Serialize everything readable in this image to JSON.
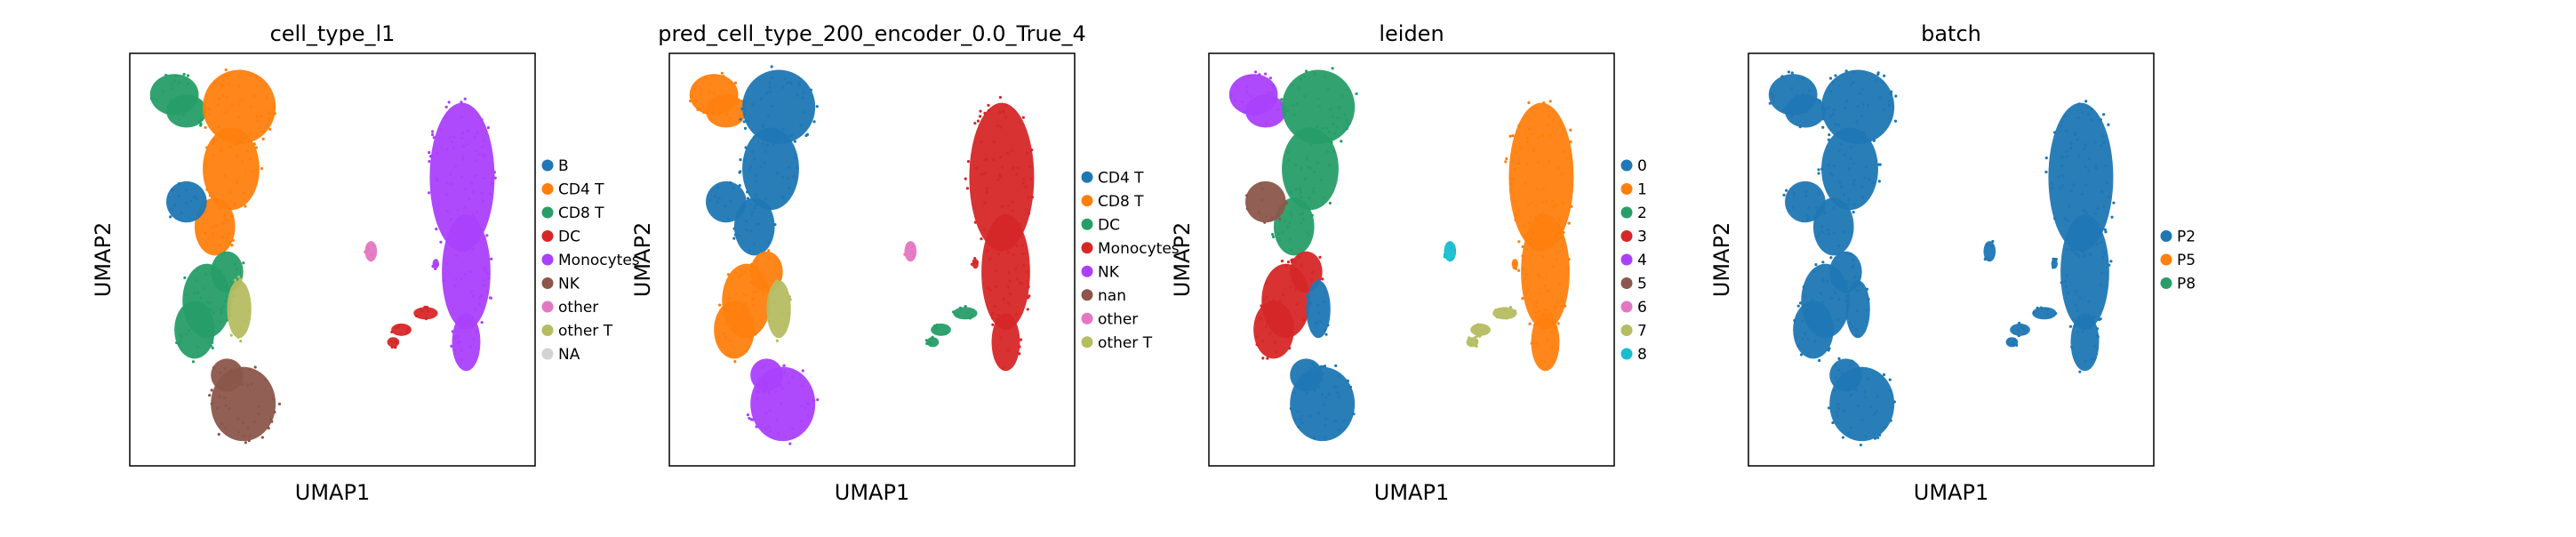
{
  "figure": {
    "colors": {
      "background": "#ffffff",
      "frame": "#000000"
    }
  },
  "chart_data": [
    {
      "type": "scatter",
      "title": "cell_type_l1",
      "xlabel": "UMAP1",
      "ylabel": "UMAP2",
      "grid": false,
      "legend_placement": "right",
      "legend": [
        {
          "label": "B",
          "color": "#1f77b4"
        },
        {
          "label": "CD4 T",
          "color": "#ff7f0e"
        },
        {
          "label": "CD8 T",
          "color": "#279e68"
        },
        {
          "label": "DC",
          "color": "#d62728"
        },
        {
          "label": "Monocytes",
          "color": "#aa40fc"
        },
        {
          "label": "NK",
          "color": "#8c564b"
        },
        {
          "label": "other",
          "color": "#e377c2"
        },
        {
          "label": "other T",
          "color": "#b5bd61"
        },
        {
          "label": "NA",
          "color": "#d3d3d3"
        }
      ],
      "clusters": {
        "left_top": "CD8 T",
        "left_upper": "CD4 T",
        "left_b_blob": "B",
        "left_middle": "CD8 T",
        "left_bottom": "NK",
        "left_other_t": "other T",
        "right_island": "Monocytes",
        "right_tail": "DC",
        "small_island": "other",
        "small_right": "Monocytes"
      }
    },
    {
      "type": "scatter",
      "title": "pred_cell_type_200_encoder_0.0_True_4",
      "xlabel": "UMAP1",
      "ylabel": "UMAP2",
      "grid": false,
      "legend_placement": "right",
      "legend": [
        {
          "label": "CD4 T",
          "color": "#1f77b4"
        },
        {
          "label": "CD8 T",
          "color": "#ff7f0e"
        },
        {
          "label": "DC",
          "color": "#279e68"
        },
        {
          "label": "Monocytes",
          "color": "#d62728"
        },
        {
          "label": "NK",
          "color": "#aa40fc"
        },
        {
          "label": "nan",
          "color": "#8c564b"
        },
        {
          "label": "other",
          "color": "#e377c2"
        },
        {
          "label": "other T",
          "color": "#b5bd61"
        }
      ],
      "clusters": {
        "left_top": "CD8 T",
        "left_upper": "CD4 T",
        "left_b_blob": "CD4 T",
        "left_middle": "CD8 T",
        "left_bottom": "NK",
        "left_other_t": "other T",
        "right_island": "Monocytes",
        "right_tail": "DC",
        "small_island": "other",
        "small_right": "Monocytes"
      }
    },
    {
      "type": "scatter",
      "title": "leiden",
      "xlabel": "UMAP1",
      "ylabel": "UMAP2",
      "grid": false,
      "legend_placement": "right",
      "legend": [
        {
          "label": "0",
          "color": "#1f77b4"
        },
        {
          "label": "1",
          "color": "#ff7f0e"
        },
        {
          "label": "2",
          "color": "#279e68"
        },
        {
          "label": "3",
          "color": "#d62728"
        },
        {
          "label": "4",
          "color": "#aa40fc"
        },
        {
          "label": "5",
          "color": "#8c564b"
        },
        {
          "label": "6",
          "color": "#e377c2"
        },
        {
          "label": "7",
          "color": "#b5bd61"
        },
        {
          "label": "8",
          "color": "#17becf"
        }
      ],
      "clusters": {
        "left_top": "4",
        "left_upper": "2",
        "left_b_blob": "5",
        "left_middle": "3",
        "left_bottom": "0",
        "left_other_t": "0",
        "right_island": "1",
        "right_tail": "7",
        "small_island": "8",
        "small_right": "1"
      }
    },
    {
      "type": "scatter",
      "title": "batch",
      "xlabel": "UMAP1",
      "ylabel": "UMAP2",
      "grid": false,
      "legend_placement": "right",
      "legend": [
        {
          "label": "P2",
          "color": "#1f77b4"
        },
        {
          "label": "P5",
          "color": "#ff7f0e"
        },
        {
          "label": "P8",
          "color": "#279e68"
        }
      ],
      "clusters": {
        "left_top": "P2",
        "left_upper": "P2",
        "left_b_blob": "P2",
        "left_middle": "P2",
        "left_bottom": "P2",
        "left_other_t": "P2",
        "right_island": "P2",
        "right_tail": "P2",
        "small_island": "P2",
        "small_right": "P2"
      }
    }
  ]
}
